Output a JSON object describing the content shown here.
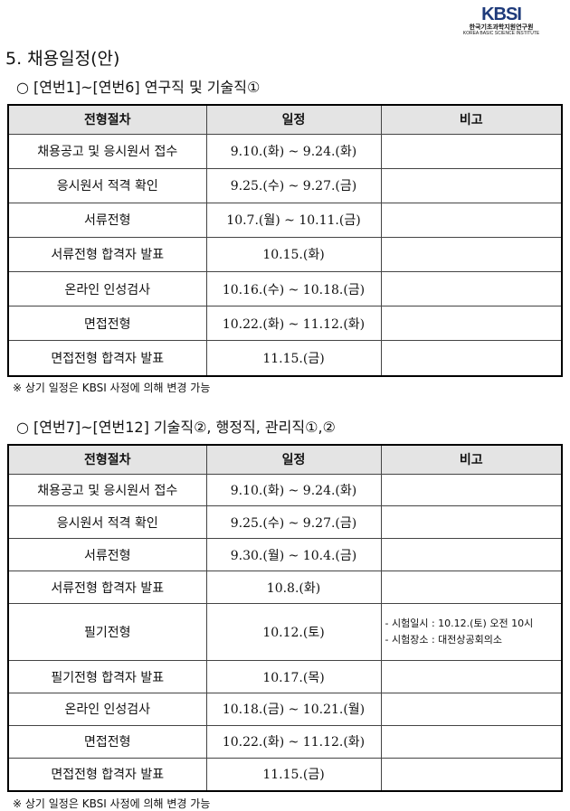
{
  "logo": {
    "mark": "KBSI",
    "korean": "한국기초과학지원연구원",
    "english": "KOREA BASIC SCIENCE INSTITUTE"
  },
  "title": "5. 채용일정(안)",
  "headers": [
    "전형절차",
    "일정",
    "비고"
  ],
  "section1": {
    "heading": "○ [연번1]~[연번6] 연구직 및 기술직①",
    "rows": [
      {
        "step": "채용공고 및 응시원서 접수",
        "date": "9.10.(화) ~ 9.24.(화)",
        "note": ""
      },
      {
        "step": "응시원서 적격 확인",
        "date": "9.25.(수) ~ 9.27.(금)",
        "note": ""
      },
      {
        "step": "서류전형",
        "date": "10.7.(월) ~ 10.11.(금)",
        "note": ""
      },
      {
        "step": "서류전형 합격자 발표",
        "date": "10.15.(화)",
        "note": ""
      },
      {
        "step": "온라인 인성검사",
        "date": "10.16.(수) ~ 10.18.(금)",
        "note": ""
      },
      {
        "step": "면접전형",
        "date": "10.22.(화) ~ 11.12.(화)",
        "note": ""
      },
      {
        "step": "면접전형 합격자 발표",
        "date": "11.15.(금)",
        "note": ""
      }
    ],
    "footnote": "※ 상기 일정은 KBSI 사정에 의해 변경 가능"
  },
  "section2": {
    "heading": "○ [연번7]~[연번12] 기술직②, 행정직, 관리직①,②",
    "rows": [
      {
        "step": "채용공고 및 응시원서 접수",
        "date": "9.10.(화) ~ 9.24.(화)",
        "note": ""
      },
      {
        "step": "응시원서 적격 확인",
        "date": "9.25.(수) ~ 9.27.(금)",
        "note": ""
      },
      {
        "step": "서류전형",
        "date": "9.30.(월) ~ 10.4.(금)",
        "note": ""
      },
      {
        "step": "서류전형 합격자 발표",
        "date": "10.8.(화)",
        "note": ""
      },
      {
        "step": "필기전형",
        "date": "10.12.(토)",
        "note": "- 시험일시 : 10.12.(토) 오전 10시",
        "note2": "- 시험장소 : 대전상공회의소"
      },
      {
        "step": "필기전형 합격자 발표",
        "date": "10.17.(목)",
        "note": ""
      },
      {
        "step": "온라인 인성검사",
        "date": "10.18.(금) ~ 10.21.(월)",
        "note": ""
      },
      {
        "step": "면접전형",
        "date": "10.22.(화) ~ 11.12.(화)",
        "note": ""
      },
      {
        "step": "면접전형 합격자 발표",
        "date": "11.15.(금)",
        "note": ""
      }
    ],
    "footnote": "※ 상기 일정은 KBSI 사정에 의해 변경 가능"
  }
}
